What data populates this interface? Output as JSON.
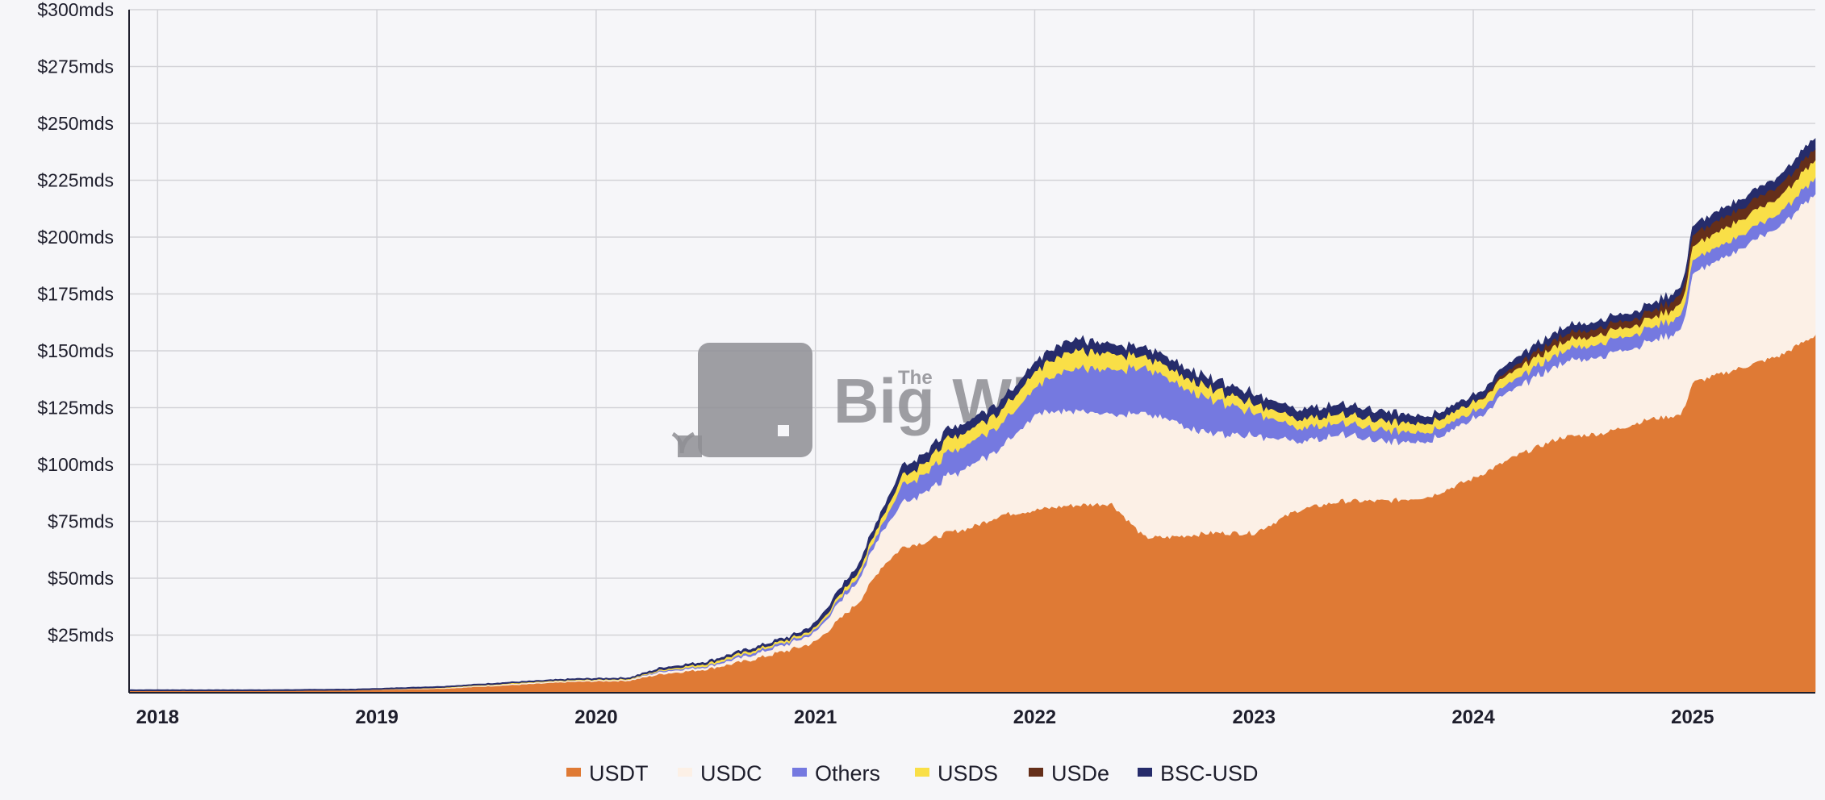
{
  "watermark": {
    "brand_small": "The",
    "brand_main": "Big Whale"
  },
  "chart_data": {
    "type": "area",
    "stacked": true,
    "title": "",
    "xlabel": "",
    "ylabel": "",
    "ylim": [
      0,
      300
    ],
    "xlim": [
      2017.87,
      2025.56
    ],
    "y_ticks": [
      25,
      50,
      75,
      100,
      125,
      150,
      175,
      200,
      225,
      250,
      275,
      300
    ],
    "y_tick_labels": [
      "$25mds",
      "$50mds",
      "$75mds",
      "$100mds",
      "$125mds",
      "$150mds",
      "$175mds",
      "$200mds",
      "$225mds",
      "$250mds",
      "$275mds",
      "$300mds"
    ],
    "x_ticks": [
      2018,
      2019,
      2020,
      2021,
      2022,
      2023,
      2024,
      2025
    ],
    "x_tick_labels": [
      "2018",
      "2019",
      "2020",
      "2021",
      "2022",
      "2023",
      "2024",
      "2025"
    ],
    "grid": true,
    "legend_position": "bottom-center",
    "x": [
      2017.87,
      2018.5,
      2018.9,
      2019.3,
      2019.6,
      2019.9,
      2020.15,
      2020.3,
      2020.5,
      2020.7,
      2020.9,
      2021.0,
      2021.2,
      2021.3,
      2021.4,
      2021.5,
      2021.6,
      2021.7,
      2021.85,
      2022.0,
      2022.15,
      2022.35,
      2022.5,
      2022.6,
      2022.8,
      2023.0,
      2023.2,
      2023.4,
      2023.6,
      2023.8,
      2024.0,
      2024.2,
      2024.4,
      2024.6,
      2024.8,
      2024.95,
      2025.0,
      2025.2,
      2025.4,
      2025.56
    ],
    "series": [
      {
        "name": "USDT",
        "color": "#df7a35",
        "values": [
          0.5,
          0.5,
          0.8,
          1.5,
          3,
          4.5,
          5,
          8,
          10,
          14,
          19,
          22,
          40,
          55,
          64,
          66,
          70,
          72,
          78,
          80,
          82,
          83,
          68,
          68,
          70,
          70,
          80,
          84,
          84,
          86,
          94,
          104,
          112,
          114,
          120,
          122,
          136,
          142,
          148,
          157
        ]
      },
      {
        "name": "USDC",
        "color": "#fcf0e6",
        "values": [
          0,
          0,
          0,
          0.3,
          0.5,
          0.5,
          0.5,
          1,
          1,
          2,
          3,
          4,
          10,
          15,
          20,
          22,
          25,
          27,
          30,
          42,
          42,
          40,
          54,
          52,
          44,
          43,
          30,
          29,
          26,
          25,
          26,
          30,
          33,
          34,
          34,
          37,
          48,
          52,
          57,
          62
        ]
      },
      {
        "name": "Others",
        "color": "#7579e0",
        "values": [
          0,
          0,
          0,
          0,
          0,
          0,
          0,
          0.5,
          0.5,
          1,
          1,
          1,
          2,
          3,
          8,
          8,
          10,
          10,
          10,
          12,
          18,
          20,
          20,
          18,
          15,
          10,
          6,
          5,
          5,
          4,
          3,
          4,
          5,
          6,
          6,
          6,
          6,
          6,
          6,
          7
        ]
      },
      {
        "name": "USDS",
        "color": "#f9df47",
        "values": [
          0,
          0,
          0,
          0.2,
          0.3,
          0.3,
          0.3,
          0.5,
          1,
          1,
          1,
          1,
          2,
          3,
          4,
          5,
          6,
          6,
          6,
          7,
          8,
          7,
          5,
          5,
          5,
          4,
          4,
          4,
          4,
          4,
          4,
          4,
          4,
          4,
          4,
          5,
          6,
          7,
          7,
          8
        ]
      },
      {
        "name": "USDe",
        "color": "#652f1a",
        "values": [
          0,
          0,
          0,
          0,
          0,
          0,
          0,
          0,
          0,
          0,
          0,
          0,
          0,
          0,
          0,
          0,
          0,
          0,
          0,
          0,
          0,
          0,
          0,
          0,
          0,
          0,
          0,
          0,
          0,
          0,
          0,
          2,
          3,
          3,
          3,
          4,
          5,
          5,
          5,
          5
        ]
      },
      {
        "name": "BSC-USD",
        "color": "#262c6b",
        "values": [
          0.5,
          0.5,
          0.5,
          0.5,
          0.5,
          0.5,
          0.5,
          0.8,
          0.8,
          1,
          1,
          2,
          3,
          3,
          4,
          4,
          4,
          4,
          4,
          4,
          5,
          4,
          4,
          4,
          4,
          4,
          4,
          4,
          4,
          3,
          3,
          3,
          3,
          3,
          3,
          3,
          4,
          4,
          4,
          5
        ]
      }
    ]
  }
}
